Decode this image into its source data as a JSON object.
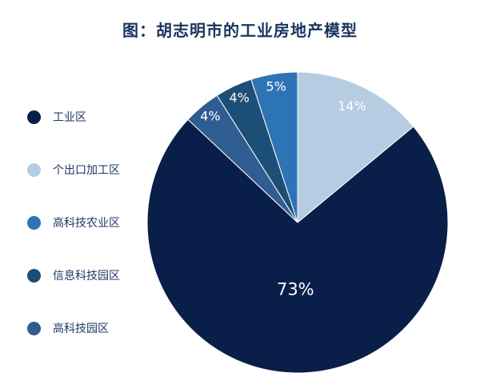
{
  "page": {
    "background": "#ffffff"
  },
  "chart_data": {
    "type": "pie",
    "title": "图：胡志明市的工业房地产模型",
    "title_color": "#17365d",
    "legend_position": "left",
    "legend_text_color": "#1f3864",
    "data_label_color": "#ffffff",
    "start_angle_deg": 0,
    "direction": "clockwise",
    "legend": [
      {
        "label": "工业区",
        "color": "#0a1e4a"
      },
      {
        "label": "个出口加工区",
        "color": "#b6cce2"
      },
      {
        "label": "高科技农业区",
        "color": "#2d74b5"
      },
      {
        "label": "信息科技园区",
        "color": "#1d4e75"
      },
      {
        "label": "高科技园区",
        "color": "#2f5d92"
      }
    ],
    "slices": [
      {
        "label": "个出口加工区",
        "value": 14,
        "data_label": "14%",
        "color": "#b6cce2"
      },
      {
        "label": "工业区",
        "value": 73,
        "data_label": "73%",
        "color": "#0a1e4a"
      },
      {
        "label": "高科技园区",
        "value": 4,
        "data_label": "4%",
        "color": "#2f5d92"
      },
      {
        "label": "信息科技园区",
        "value": 4,
        "data_label": "4%",
        "color": "#1d4e75"
      },
      {
        "label": "高科技农业区",
        "value": 5,
        "data_label": "5%",
        "color": "#2d74b5"
      }
    ]
  }
}
